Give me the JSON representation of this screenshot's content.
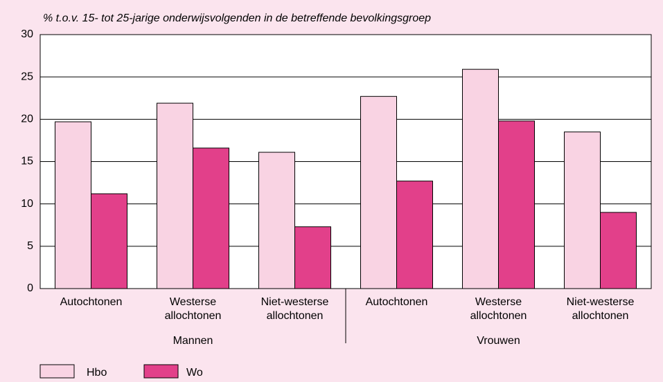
{
  "chart_data": {
    "type": "bar",
    "subtitle": "% t.o.v. 15- tot 25-jarige onderwijsvolgenden in de betreffende bevolkingsgroep",
    "categories": [
      "Autochtonen",
      "Westerse allochtonen",
      "Niet-westerse allochtonen",
      "Autochtonen",
      "Westerse allochtonen",
      "Niet-westerse allochtonen"
    ],
    "groups": [
      "Mannen",
      "Vrouwen"
    ],
    "series": [
      {
        "name": "Hbo",
        "color": "#f9d3e3",
        "values": [
          19.7,
          21.9,
          16.1,
          22.7,
          25.9,
          18.5
        ]
      },
      {
        "name": "Wo",
        "color": "#e2408a",
        "values": [
          11.2,
          16.6,
          7.3,
          12.7,
          19.8,
          9.0
        ]
      }
    ],
    "ylim": [
      0,
      30
    ],
    "yticks": [
      0,
      5,
      10,
      15,
      20,
      25,
      30
    ],
    "grid": true
  }
}
